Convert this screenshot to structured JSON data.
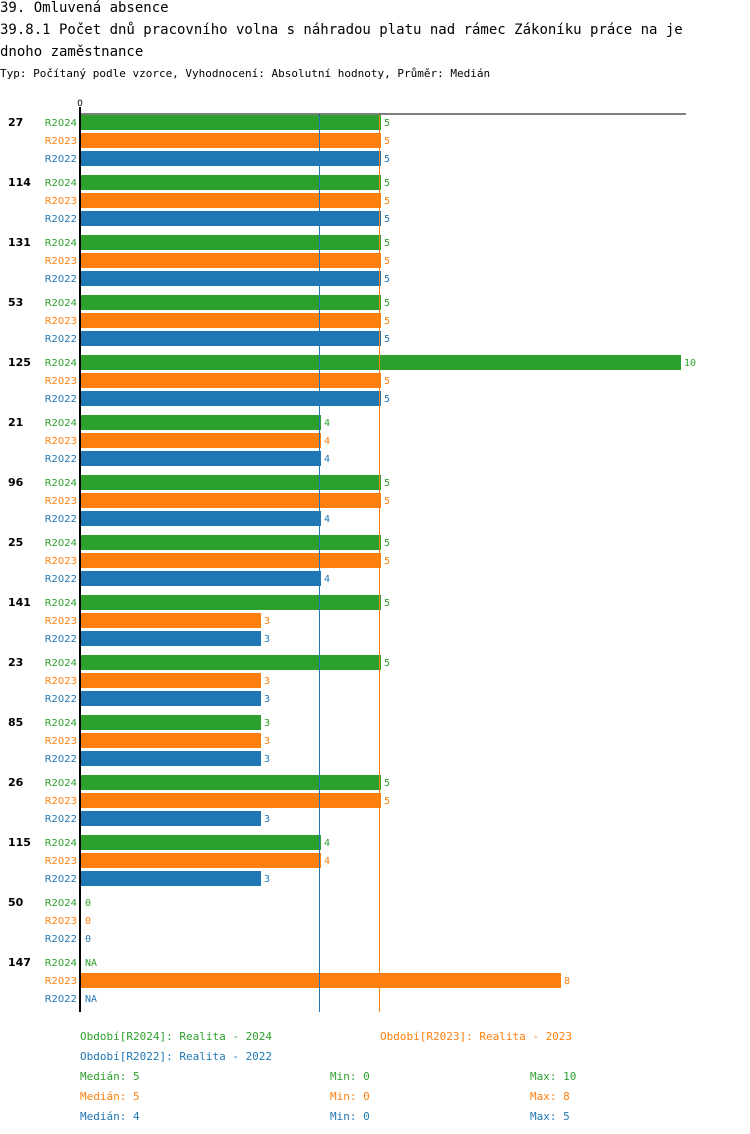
{
  "header": {
    "title_line1": "39. Omluvená absence",
    "title_line2": "39.8.1 Počet dnů pracovního volna s náhradou platu nad rámec Zákoníku práce na je",
    "title_line3": "dnoho zaměstnance",
    "subtitle": "Typ: Počítaný podle vzorce, Vyhodnocení: Absolutní hodnoty, Průměr: Medián"
  },
  "colors": {
    "R2024": "#2ca02c",
    "R2023": "#ff7f0e",
    "R2022": "#1f77b4"
  },
  "chart_data": {
    "type": "bar",
    "orientation": "horizontal",
    "axis_zero_label": "0",
    "xlim": [
      0,
      10
    ],
    "series_names": [
      "R2024",
      "R2023",
      "R2022"
    ],
    "groups": [
      {
        "label": "27",
        "values": [
          5,
          5,
          5
        ],
        "display": [
          "5",
          "5",
          "5"
        ]
      },
      {
        "label": "114",
        "values": [
          5,
          5,
          5
        ],
        "display": [
          "5",
          "5",
          "5"
        ]
      },
      {
        "label": "131",
        "values": [
          5,
          5,
          5
        ],
        "display": [
          "5",
          "5",
          "5"
        ]
      },
      {
        "label": "53",
        "values": [
          5,
          5,
          5
        ],
        "display": [
          "5",
          "5",
          "5"
        ]
      },
      {
        "label": "125",
        "values": [
          10,
          5,
          5
        ],
        "display": [
          "10",
          "5",
          "5"
        ]
      },
      {
        "label": "21",
        "values": [
          4,
          4,
          4
        ],
        "display": [
          "4",
          "4",
          "4"
        ]
      },
      {
        "label": "96",
        "values": [
          5,
          5,
          4
        ],
        "display": [
          "5",
          "5",
          "4"
        ]
      },
      {
        "label": "25",
        "values": [
          5,
          5,
          4
        ],
        "display": [
          "5",
          "5",
          "4"
        ]
      },
      {
        "label": "141",
        "values": [
          5,
          3,
          3
        ],
        "display": [
          "5",
          "3",
          "3"
        ]
      },
      {
        "label": "23",
        "values": [
          5,
          3,
          3
        ],
        "display": [
          "5",
          "3",
          "3"
        ]
      },
      {
        "label": "85",
        "values": [
          3,
          3,
          3
        ],
        "display": [
          "3",
          "3",
          "3"
        ]
      },
      {
        "label": "26",
        "values": [
          5,
          5,
          3
        ],
        "display": [
          "5",
          "5",
          "3"
        ]
      },
      {
        "label": "115",
        "values": [
          4,
          4,
          3
        ],
        "display": [
          "4",
          "4",
          "3"
        ]
      },
      {
        "label": "50",
        "values": [
          0,
          0,
          0
        ],
        "display": [
          "0",
          "0",
          "0"
        ]
      },
      {
        "label": "147",
        "values": [
          null,
          8,
          null
        ],
        "display": [
          "NA",
          "8",
          "NA"
        ]
      }
    ],
    "median_lines": [
      {
        "series": "R2024",
        "value": 5
      },
      {
        "series": "R2023",
        "value": 5
      },
      {
        "series": "R2022",
        "value": 4
      }
    ]
  },
  "legend": {
    "periods": [
      {
        "series": "R2024",
        "text": "Období[R2024]: Realita - 2024"
      },
      {
        "series": "R2023",
        "text": "Období[R2023]: Realita - 2023"
      },
      {
        "series": "R2022",
        "text": "Období[R2022]: Realita - 2022"
      }
    ],
    "stats": [
      {
        "series": "R2024",
        "median": "Medián: 5",
        "min": "Min: 0",
        "max": "Max: 10"
      },
      {
        "series": "R2023",
        "median": "Medián: 5",
        "min": "Min: 0",
        "max": "Max: 8"
      },
      {
        "series": "R2022",
        "median": "Medián: 4",
        "min": "Min: 0",
        "max": "Max: 5"
      }
    ]
  }
}
